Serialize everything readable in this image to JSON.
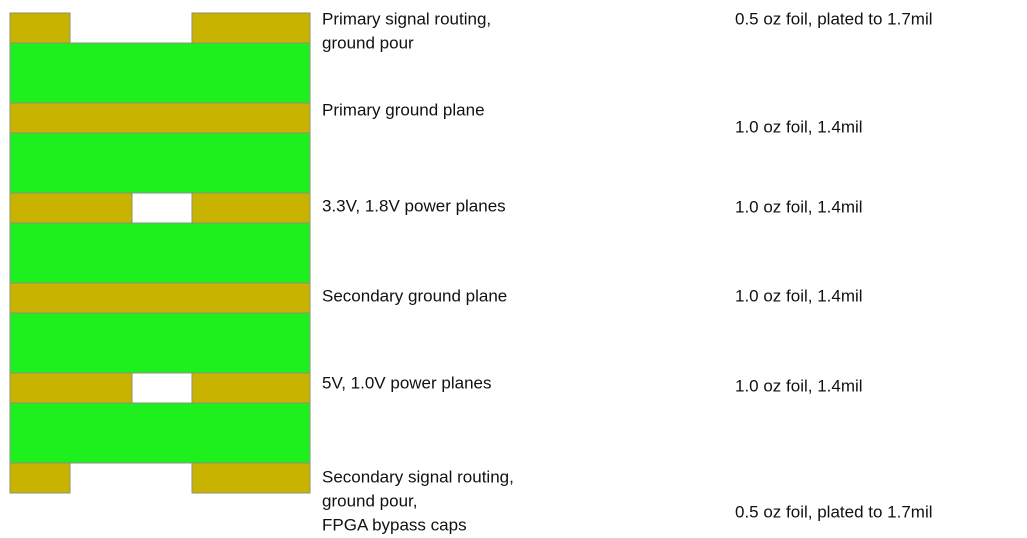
{
  "layers": [
    {
      "label": [
        "Primary signal routing,",
        "ground pour"
      ],
      "spec": "0.5 oz foil, plated to 1.7mil"
    },
    {
      "label": [
        "Primary ground plane"
      ],
      "spec": "1.0 oz foil, 1.4mil"
    },
    {
      "label": [
        "3.3V, 1.8V power planes"
      ],
      "spec": "1.0 oz foil, 1.4mil"
    },
    {
      "label": [
        "Secondary ground plane"
      ],
      "spec": "1.0 oz foil, 1.4mil"
    },
    {
      "label": [
        "5V, 1.0V power planes"
      ],
      "spec": "1.0 oz foil, 1.4mil"
    },
    {
      "label": [
        "Secondary signal routing,",
        "ground pour,",
        "FPGA bypass caps"
      ],
      "spec": "0.5 oz foil, plated to 1.7mil"
    }
  ]
}
